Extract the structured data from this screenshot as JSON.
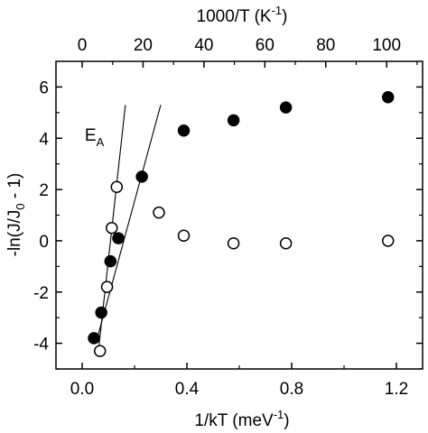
{
  "chart_data": {
    "type": "scatter",
    "xlabel": "1/kT (meV",
    "xlabel_sup": "-1",
    "xlabel_end": ")",
    "x2label": "1000/T (K",
    "x2label_sup": "-1",
    "x2label_end": ")",
    "ylabel": "-ln(J/J",
    "ylabel_sub": "0",
    "ylabel_end": " - 1)",
    "xlim": [
      -0.1,
      1.3
    ],
    "ylim": [
      -5,
      7
    ],
    "x2lim": [
      -8.6,
      111.8
    ],
    "x_ticks": [
      "0.0",
      "0.4",
      "0.8",
      "1.2"
    ],
    "x_tick_values": [
      0.0,
      0.4,
      0.8,
      1.2
    ],
    "y_ticks": [
      "-4",
      "-2",
      "0",
      "2",
      "4",
      "6"
    ],
    "y_tick_values": [
      -4,
      -2,
      0,
      2,
      4,
      6
    ],
    "x2_ticks": [
      "0",
      "20",
      "40",
      "60",
      "80",
      "100"
    ],
    "x2_tick_values": [
      0,
      20,
      40,
      60,
      80,
      100
    ],
    "annotation": {
      "text": "E",
      "sub": "A",
      "x": 0.01,
      "y": 3.9
    },
    "series": [
      {
        "marker": "filled-circle",
        "color": "#000000",
        "points": [
          [
            0.045,
            -3.8
          ],
          [
            0.073,
            -2.8
          ],
          [
            0.108,
            -0.8
          ],
          [
            0.138,
            0.1
          ],
          [
            0.228,
            2.5
          ],
          [
            0.388,
            4.3
          ],
          [
            0.578,
            4.7
          ],
          [
            0.778,
            5.2
          ],
          [
            1.168,
            5.6
          ]
        ]
      },
      {
        "marker": "open-circle",
        "color": "#000000",
        "points": [
          [
            0.068,
            -4.3
          ],
          [
            0.095,
            -1.8
          ],
          [
            0.113,
            0.5
          ],
          [
            0.132,
            2.1
          ],
          [
            0.293,
            1.1
          ],
          [
            0.388,
            0.2
          ],
          [
            0.578,
            -0.1
          ],
          [
            0.778,
            -0.1
          ],
          [
            1.168,
            0.0
          ]
        ]
      }
    ],
    "fit_lines": [
      {
        "x": [
          0.062,
          0.165
        ],
        "y": [
          -4.3,
          5.3
        ]
      },
      {
        "x": [
          0.055,
          0.3
        ],
        "y": [
          -3.9,
          5.3
        ]
      }
    ],
    "grid": false
  }
}
